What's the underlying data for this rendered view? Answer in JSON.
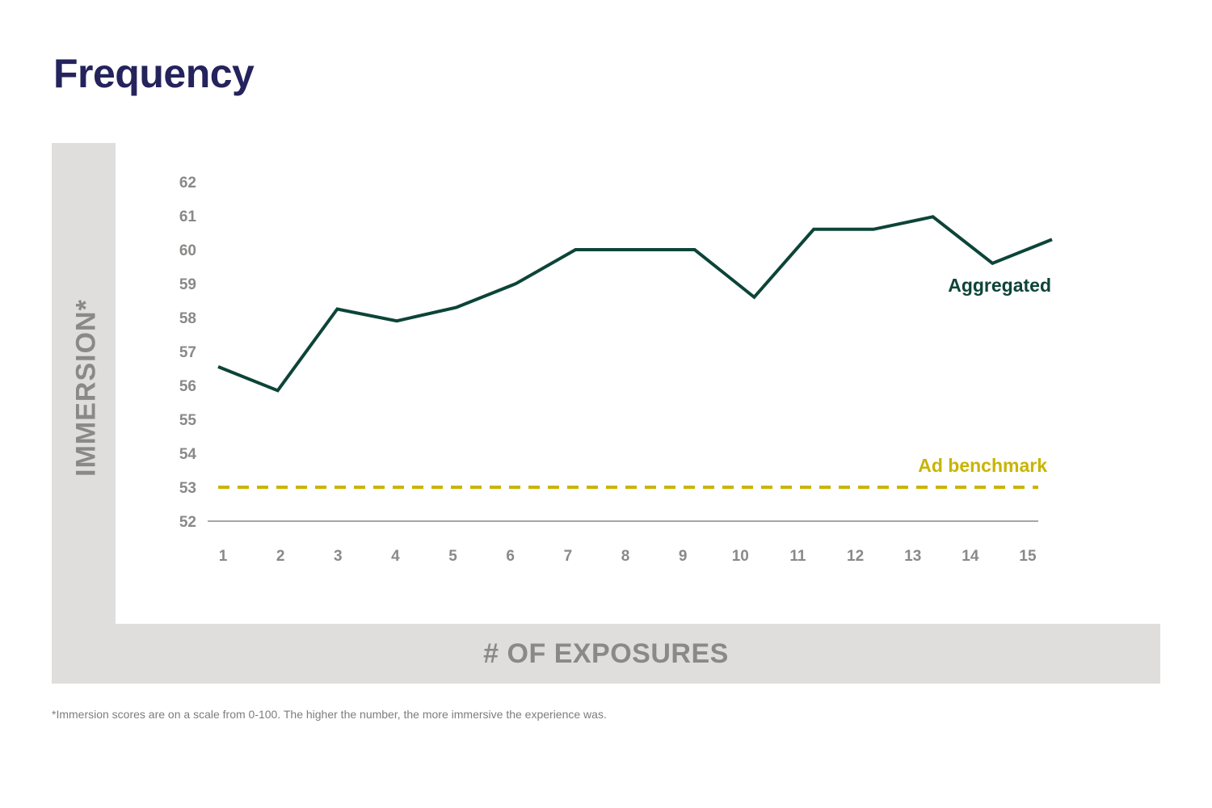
{
  "title": "Frequency",
  "footnote": "*Immersion scores are on a scale from 0-100. The higher the number, the more immersive the experience was.",
  "colors": {
    "title": "#25235c",
    "aggregated": "#0d4438",
    "benchmark": "#c9b400",
    "axis_text": "#8a8988",
    "frame": "#dfdedc"
  },
  "chart_data": {
    "type": "line",
    "xlabel": "# OF EXPOSURES",
    "ylabel": "IMMERSION*",
    "x": [
      1,
      2,
      3,
      4,
      5,
      6,
      7,
      8,
      9,
      10,
      11,
      12,
      13,
      14,
      15
    ],
    "xticks": [
      "1",
      "2",
      "3",
      "4",
      "5",
      "6",
      "7",
      "8",
      "9",
      "10",
      "11",
      "12",
      "13",
      "14",
      "15"
    ],
    "yticks": [
      "52",
      "53",
      "54",
      "55",
      "56",
      "57",
      "58",
      "59",
      "60",
      "61",
      "62"
    ],
    "ylim": [
      52,
      62
    ],
    "grid": false,
    "series": [
      {
        "name": "Aggregated",
        "style": "solid",
        "values": [
          56.55,
          55.85,
          58.25,
          57.9,
          58.3,
          59.0,
          60.0,
          60.0,
          60.0,
          58.6,
          60.6,
          60.6,
          60.97,
          59.6,
          60.3
        ]
      },
      {
        "name": "Ad benchmark",
        "style": "dashed",
        "values": [
          53,
          53,
          53,
          53,
          53,
          53,
          53,
          53,
          53,
          53,
          53,
          53,
          53,
          53,
          53
        ]
      }
    ]
  }
}
